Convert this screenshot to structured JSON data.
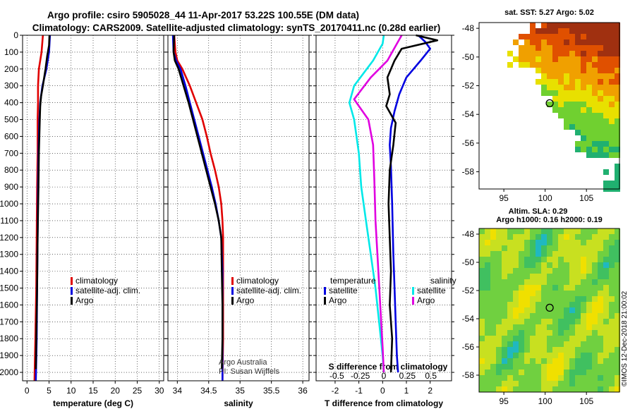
{
  "title": {
    "line1": "Argo profile: csiro 5905028_44 11-Apr-2017 53.22S 100.55E (DM data)",
    "line2": "Climatology: CARS2009. Satellite-adjusted climatology: synTS_20170411.nc (0.28d earlier)"
  },
  "colors": {
    "climatology": "#e00000",
    "satellite": "#0000e0",
    "argo": "#000000",
    "sat_t": "#00e8e8",
    "sat_s": "#e000e0"
  },
  "depth_axis": {
    "ylim": [
      0,
      2050
    ],
    "ticks": [
      0,
      100,
      200,
      300,
      400,
      500,
      600,
      700,
      800,
      900,
      1000,
      1100,
      1200,
      1300,
      1400,
      1500,
      1600,
      1700,
      1800,
      1900,
      2000
    ]
  },
  "chart_data": [
    {
      "type": "line",
      "name": "temperature",
      "xlabel": "temperature (deg C)",
      "xlim": [
        -1,
        31
      ],
      "xticks": [
        0,
        5,
        10,
        15,
        20,
        25,
        30
      ],
      "series": [
        {
          "name": "climatology",
          "color_key": "climatology",
          "x": [
            3.6,
            3.3,
            2.7,
            2.5,
            2.5,
            2.4,
            2.4,
            2.3,
            2.2,
            2.1,
            1.9,
            1.7
          ],
          "depth": [
            0,
            100,
            200,
            300,
            400,
            500,
            700,
            900,
            1200,
            1500,
            1800,
            2050
          ]
        },
        {
          "name": "satellite-adj. clim.",
          "color_key": "satellite",
          "x": [
            5.2,
            5.0,
            4.4,
            3.5,
            3.0,
            2.8,
            2.6,
            2.5,
            2.4,
            2.3,
            2.2,
            2.0
          ],
          "depth": [
            0,
            100,
            200,
            300,
            400,
            500,
            700,
            900,
            1200,
            1500,
            1800,
            2050
          ]
        },
        {
          "name": "Argo",
          "color_key": "argo",
          "x": [
            5.1,
            5.0,
            4.6,
            4.2,
            3.6,
            3.2,
            3.0,
            2.9,
            2.7,
            2.6,
            2.4,
            2.3,
            2.1,
            2.0
          ],
          "depth": [
            0,
            60,
            120,
            200,
            300,
            360,
            420,
            500,
            700,
            900,
            1200,
            1500,
            1800,
            1980
          ]
        }
      ],
      "legend": [
        {
          "label": "climatology",
          "color_key": "climatology"
        },
        {
          "label": "satellite-adj. clim.",
          "color_key": "satellite"
        },
        {
          "label": "Argo",
          "color_key": "argo"
        }
      ]
    },
    {
      "type": "line",
      "name": "salinity",
      "xlabel": "salinity",
      "xlim": [
        33.85,
        36.1
      ],
      "xticks": [
        34,
        34.5,
        35,
        35.5,
        36
      ],
      "xticklabels": [
        "34",
        "34.5",
        "35",
        "35.5",
        "36"
      ],
      "series": [
        {
          "name": "climatology",
          "color_key": "climatology",
          "x": [
            33.95,
            33.97,
            34.0,
            34.08,
            34.2,
            34.3,
            34.4,
            34.47,
            34.53,
            34.6,
            34.66,
            34.7,
            34.72,
            34.73,
            34.73,
            34.73,
            34.73,
            34.72
          ],
          "depth": [
            0,
            100,
            150,
            200,
            300,
            400,
            500,
            600,
            700,
            800,
            900,
            1000,
            1100,
            1200,
            1400,
            1600,
            1800,
            2050
          ]
        },
        {
          "name": "satellite-adj. clim.",
          "color_key": "satellite",
          "x": [
            33.93,
            33.94,
            33.98,
            34.05,
            34.13,
            34.2,
            34.27,
            34.34,
            34.41,
            34.48,
            34.55,
            34.61,
            34.66,
            34.7,
            34.72,
            34.72,
            34.72,
            34.72
          ],
          "depth": [
            0,
            100,
            150,
            200,
            300,
            400,
            500,
            600,
            700,
            800,
            900,
            1000,
            1100,
            1200,
            1400,
            1600,
            1800,
            2050
          ]
        },
        {
          "name": "Argo",
          "color_key": "argo",
          "x": [
            33.95,
            33.94,
            33.96,
            34.02,
            34.1,
            34.18,
            34.25,
            34.32,
            34.39,
            34.46,
            34.53,
            34.6,
            34.66,
            34.7,
            34.71,
            34.72,
            34.72,
            34.71
          ],
          "depth": [
            0,
            100,
            150,
            200,
            300,
            400,
            500,
            600,
            700,
            800,
            900,
            1000,
            1100,
            1200,
            1400,
            1600,
            1800,
            1980
          ]
        }
      ],
      "legend": [
        {
          "label": "climatology",
          "color_key": "climatology"
        },
        {
          "label": "satellite-adj. clim.",
          "color_key": "satellite"
        },
        {
          "label": "Argo",
          "color_key": "argo"
        }
      ],
      "credits": [
        "Argo Australia",
        "PI: Susan Wijffels"
      ]
    },
    {
      "type": "line",
      "name": "difference",
      "xlabel": "T difference from climatology",
      "xlabel2": "S difference from climatology",
      "xlim": [
        -2.8,
        2.9
      ],
      "xticks": [
        -2,
        -1,
        0,
        1,
        2
      ],
      "xticklabels": [
        "-2",
        "-1",
        "0",
        "1",
        "2"
      ],
      "xticks_s": [
        -0.5,
        -0.25,
        0,
        0.25,
        0.5
      ],
      "xticklabels_s": [
        "-0.5",
        "-0.25",
        "0",
        "0.25",
        "0.5"
      ],
      "series": [
        {
          "name": "T satellite",
          "color_key": "satellite",
          "x": [
            1.5,
            1.8,
            2.0,
            1.6,
            1.0,
            0.7,
            0.5,
            0.35,
            0.3,
            0.35,
            0.4,
            0.45,
            0.5,
            0.55,
            0.6,
            0.65
          ],
          "depth": [
            0,
            40,
            80,
            150,
            250,
            350,
            450,
            550,
            650,
            780,
            1000,
            1300,
            1500,
            1700,
            1900,
            2000
          ]
        },
        {
          "name": "T Argo",
          "color_key": "argo",
          "x": [
            1.4,
            2.3,
            0.8,
            0.5,
            0.2,
            0.3,
            0.15,
            0.55,
            0.45,
            0.3,
            0.25,
            0.3,
            0.35,
            0.3,
            0.4,
            0.35
          ],
          "depth": [
            0,
            30,
            80,
            150,
            250,
            350,
            420,
            520,
            650,
            800,
            1000,
            1200,
            1400,
            1600,
            1800,
            2000
          ]
        },
        {
          "name": "S satellite",
          "color_key": "sat_t",
          "x": [
            0.05,
            0.0,
            -0.4,
            -1.2,
            -1.4,
            -1.2,
            -1.1,
            -1.0,
            -0.9,
            -0.7,
            -0.5,
            -0.3,
            -0.15,
            0.0,
            0.05
          ],
          "depth": [
            0,
            50,
            150,
            300,
            400,
            500,
            600,
            700,
            900,
            1100,
            1300,
            1500,
            1700,
            1900,
            2000
          ]
        },
        {
          "name": "S Argo",
          "color_key": "sat_s",
          "x": [
            0.8,
            0.6,
            0.2,
            -0.5,
            -1.2,
            -0.6,
            -0.4,
            -0.35,
            -0.3,
            -0.2,
            -0.1,
            0.0,
            0.05
          ],
          "depth": [
            0,
            50,
            150,
            250,
            380,
            500,
            650,
            850,
            1100,
            1350,
            1600,
            1850,
            2000
          ]
        }
      ],
      "legend_left_title": "temperature",
      "legend_right_title": "salinity",
      "legend_left": [
        {
          "label": "satellite",
          "color_key": "satellite"
        },
        {
          "label": "Argo",
          "color_key": "argo"
        }
      ],
      "legend_right": [
        {
          "label": "satellite",
          "color_key": "sat_t"
        },
        {
          "label": "Argo",
          "color_key": "sat_s"
        }
      ]
    },
    {
      "type": "heatmap",
      "name": "sst-map",
      "title": "sat. SST: 5.27 Argo: 5.02",
      "yticks": [
        -48,
        -50,
        -52,
        -54,
        -56,
        -58
      ],
      "xticks": [
        95,
        100,
        105
      ],
      "xlim": [
        92,
        109
      ],
      "ylim": [
        -59.2,
        -47.6
      ],
      "marker": [
        100.55,
        -53.22
      ]
    },
    {
      "type": "heatmap",
      "name": "sla-map",
      "title": "Altim. SLA: 0.29",
      "subtitle": "Argo h1000: 0.16 h2000: 0.19",
      "yticks": [
        -48,
        -50,
        -52,
        -54,
        -56,
        -58
      ],
      "xticks": [
        95,
        100,
        105
      ],
      "xlim": [
        92,
        109
      ],
      "ylim": [
        -59.2,
        -47.6
      ],
      "marker": [
        100.55,
        -53.22
      ]
    }
  ],
  "stamp": "©IMOS 12-Dec-2018 21:00:02"
}
